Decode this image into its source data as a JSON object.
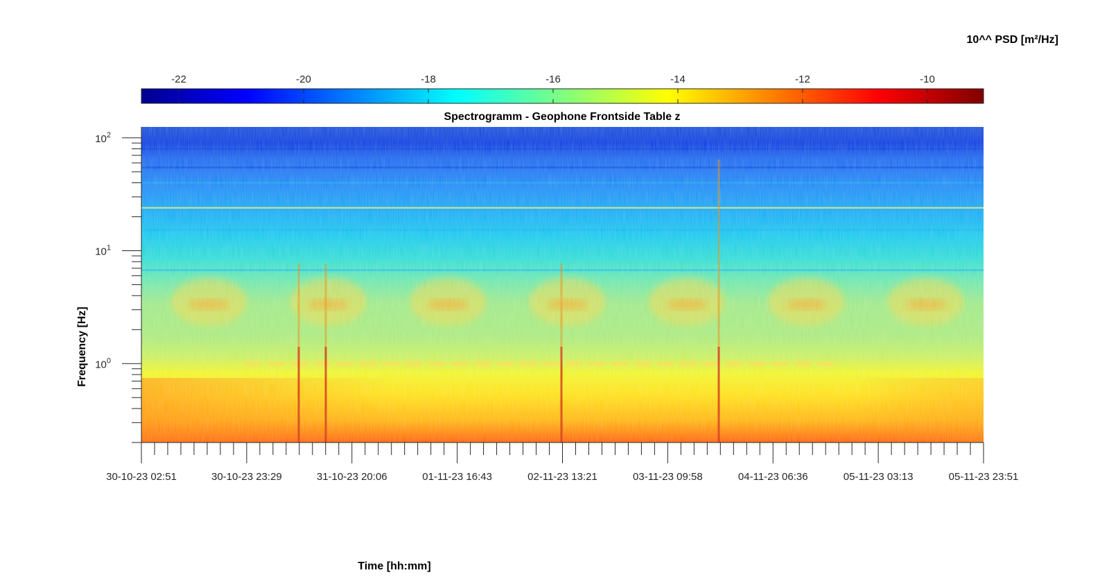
{
  "chart_data": {
    "type": "heatmap",
    "title": "Spectrogramm - Geophone Frontside Table z",
    "xlabel": "Time [hh:mm]",
    "ylabel": "Frequency [Hz]",
    "colorbar": {
      "label": "10^^ PSD [m²/Hz]",
      "range": [
        -22.6,
        -9.1
      ],
      "ticks": [
        -22,
        -20,
        -18,
        -16,
        -14,
        -12,
        -10
      ],
      "colormap": "jet",
      "position": "top"
    },
    "x_ticks": [
      "30-10-23 02:51",
      "30-10-23 23:29",
      "31-10-23 20:06",
      "01-11-23 16:43",
      "02-11-23 13:21",
      "03-11-23 09:58",
      "04-11-23 06:36",
      "05-11-23 03:13",
      "05-11-23 23:51"
    ],
    "y_ticks": [
      {
        "base": "10",
        "exp": "0",
        "value": 1
      },
      {
        "base": "10",
        "exp": "1",
        "value": 10
      },
      {
        "base": "10",
        "exp": "2",
        "value": 100
      }
    ],
    "y_scale": "log",
    "ylim": [
      0.2,
      125
    ],
    "grid": false,
    "features": {
      "daily_activity_band_hz": [
        2.5,
        5
      ],
      "persistent_lines_hz": [
        1.0,
        24.0
      ],
      "transient_events": [
        "31-10-23 ~11:00",
        "31-10-23 ~18:00",
        "02-11-23 ~13:00",
        "03-11-23 ~22:00"
      ]
    }
  }
}
